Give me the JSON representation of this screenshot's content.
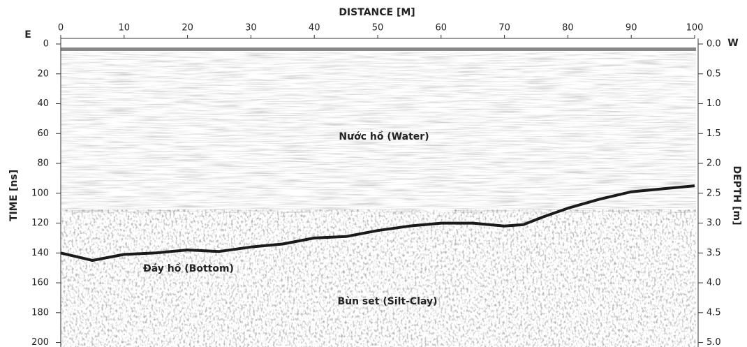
{
  "chart_data": {
    "type": "line",
    "title": "DISTANCE [M]",
    "y_label": "TIME [ns]",
    "y2_label": "DEPTH [m]",
    "left_marker": "E",
    "right_marker": "W",
    "annotations": [
      "Nước hồ (Water)",
      "Đáy hồ (Bottom)",
      "Bùn set (Silt-Clay)"
    ],
    "color": "#1a1a1a",
    "x": [
      0,
      5,
      10,
      15,
      20,
      25,
      30,
      35,
      40,
      45,
      50,
      55,
      60,
      65,
      70,
      73,
      76,
      80,
      85,
      90,
      95,
      100
    ],
    "values": [
      140,
      145,
      141,
      140,
      138,
      139,
      136,
      134,
      130,
      129,
      125,
      122,
      120,
      120,
      122,
      121,
      116,
      110,
      104,
      99,
      97,
      95
    ],
    "xlim": [
      0,
      100
    ],
    "xticks": [
      0,
      10,
      20,
      30,
      40,
      50,
      60,
      70,
      80,
      90,
      100
    ],
    "ylim": [
      0,
      203
    ],
    "yticks": [
      0,
      20,
      40,
      60,
      80,
      100,
      120,
      140,
      160,
      180,
      200
    ],
    "y2lim": [
      0,
      5.075
    ],
    "y2ticks": [
      {
        "value": 0,
        "label": "0.0"
      },
      0.5,
      {
        "value": 1,
        "label": "1.0"
      },
      1.5,
      {
        "value": 2,
        "label": "2.0"
      },
      2.5,
      {
        "value": 3,
        "label": "3.0"
      },
      3.5,
      {
        "value": 4,
        "label": "4.0"
      },
      4.5,
      {
        "value": 5,
        "label": "5.0"
      }
    ]
  }
}
